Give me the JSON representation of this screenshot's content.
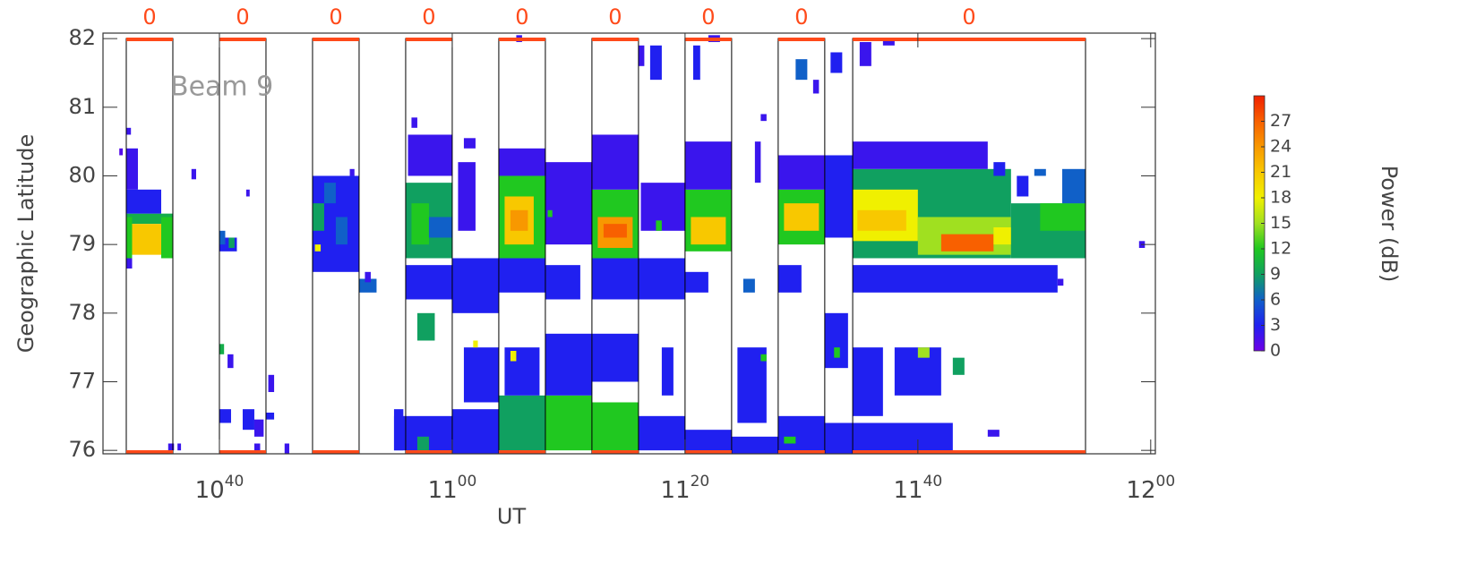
{
  "chart_data": {
    "type": "heatmap",
    "xlabel": "UT",
    "ylabel": "Geographic Latitude",
    "colorbar_label": "Power (dB)",
    "annotation": "Beam 9",
    "xlim": [
      630,
      720.4
    ],
    "ylim": [
      75.95,
      82.08
    ],
    "zlim": [
      0,
      30
    ],
    "xticks": [
      {
        "value": 640,
        "label": "1040"
      },
      {
        "value": 660,
        "label": "1100"
      },
      {
        "value": 680,
        "label": "1120"
      },
      {
        "value": 700,
        "label": "1140"
      },
      {
        "value": 720,
        "label": "1200"
      }
    ],
    "yticks": [
      76,
      77,
      78,
      79,
      80,
      81,
      82
    ],
    "zticks": [
      0,
      3,
      6,
      9,
      12,
      15,
      18,
      21,
      24,
      27
    ],
    "colormap": [
      "#6e00e6",
      "#2020f0",
      "#1060c8",
      "#10a060",
      "#20c820",
      "#a0e020",
      "#f0f000",
      "#f8c800",
      "#f89800",
      "#f86000",
      "#f02000"
    ],
    "scan_color": "#ff4a1a",
    "scans": [
      {
        "start": 632,
        "end": 636,
        "label": "0"
      },
      {
        "start": 640,
        "end": 644,
        "label": "0"
      },
      {
        "start": 648,
        "end": 652,
        "label": "0"
      },
      {
        "start": 656,
        "end": 660,
        "label": "0"
      },
      {
        "start": 664,
        "end": 668,
        "label": "0"
      },
      {
        "start": 672,
        "end": 676,
        "label": "0"
      },
      {
        "start": 680,
        "end": 684,
        "label": "0"
      },
      {
        "start": 688,
        "end": 692,
        "label": "0"
      },
      {
        "start": 694.4,
        "end": 714.4,
        "label": "0"
      }
    ],
    "cells": [
      [
        632,
        636,
        79.3,
        79.45,
        10
      ],
      [
        632,
        635,
        79.45,
        79.8,
        3
      ],
      [
        632,
        633,
        79.8,
        80.4,
        2
      ],
      [
        632,
        632.5,
        78.65,
        78.8,
        2
      ],
      [
        632,
        632.4,
        80.6,
        80.7,
        2
      ],
      [
        631.4,
        631.7,
        80.3,
        80.4,
        1
      ],
      [
        632,
        632.5,
        78.8,
        79.4,
        12
      ],
      [
        635,
        636,
        78.8,
        79.4,
        12
      ],
      [
        632.5,
        635,
        78.85,
        79.3,
        21
      ],
      [
        635.6,
        636.1,
        76,
        76.1,
        2
      ],
      [
        636.4,
        636.7,
        76,
        76.1,
        2
      ],
      [
        637.6,
        638,
        79.95,
        80.1,
        2
      ],
      [
        640,
        641.5,
        78.9,
        79.1,
        3
      ],
      [
        640,
        640.5,
        79,
        79.2,
        6
      ],
      [
        640.8,
        641.3,
        78.95,
        79.1,
        9
      ],
      [
        640,
        640.4,
        77.4,
        77.55,
        10
      ],
      [
        640,
        641,
        76.4,
        76.6,
        3
      ],
      [
        642,
        643,
        76.3,
        76.6,
        3
      ],
      [
        643,
        643.8,
        76.2,
        76.45,
        2
      ],
      [
        644,
        644.7,
        76.45,
        76.55,
        3
      ],
      [
        643,
        643.5,
        75.95,
        76.1,
        2
      ],
      [
        644.2,
        644.7,
        76.85,
        77.1,
        2
      ],
      [
        642.3,
        642.6,
        79.7,
        79.8,
        2
      ],
      [
        640.7,
        641.2,
        77.2,
        77.4,
        2
      ],
      [
        645.6,
        646,
        75.95,
        76.1,
        2
      ],
      [
        648,
        652,
        78.6,
        80,
        3
      ],
      [
        648,
        649,
        79.2,
        79.6,
        9
      ],
      [
        650,
        651,
        79,
        79.4,
        6
      ],
      [
        648.2,
        648.7,
        78.9,
        79,
        18
      ],
      [
        649,
        650,
        79.6,
        79.9,
        6
      ],
      [
        651.2,
        651.6,
        80,
        80.1,
        2
      ],
      [
        652,
        653.5,
        78.3,
        78.5,
        6
      ],
      [
        652.5,
        653,
        78.45,
        78.6,
        2
      ],
      [
        655,
        655.8,
        76,
        76.6,
        3
      ],
      [
        656,
        660,
        78.8,
        79.9,
        9
      ],
      [
        656.5,
        658,
        79,
        79.6,
        12
      ],
      [
        658,
        660,
        79.1,
        79.4,
        6
      ],
      [
        656.2,
        660,
        80,
        80.6,
        2
      ],
      [
        656.5,
        657,
        80.7,
        80.85,
        2
      ],
      [
        656,
        660,
        78.2,
        78.7,
        3
      ],
      [
        657,
        658.5,
        77.6,
        78,
        9
      ],
      [
        656,
        660,
        75.95,
        76.5,
        3
      ],
      [
        657,
        658,
        76,
        76.2,
        9
      ],
      [
        655,
        656,
        76,
        76.5,
        3
      ],
      [
        660,
        664,
        78,
        78.8,
        3
      ],
      [
        660,
        664,
        75.95,
        76.6,
        3
      ],
      [
        661,
        664,
        76.7,
        77.5,
        3
      ],
      [
        660.5,
        662,
        79.2,
        80.2,
        2
      ],
      [
        661,
        662,
        80.4,
        80.55,
        2
      ],
      [
        661.8,
        662.2,
        77.5,
        77.6,
        18
      ],
      [
        664,
        668,
        78.8,
        80,
        12
      ],
      [
        664.5,
        667,
        79,
        79.7,
        21
      ],
      [
        665,
        666.5,
        79.2,
        79.5,
        24
      ],
      [
        664,
        668,
        80,
        80.4,
        2
      ],
      [
        665.5,
        666,
        81.95,
        82.05,
        2
      ],
      [
        664,
        668,
        78.3,
        78.8,
        3
      ],
      [
        664,
        668,
        75.95,
        76.8,
        9
      ],
      [
        664.5,
        667.5,
        76.8,
        77.5,
        3
      ],
      [
        665,
        665.5,
        77.3,
        77.45,
        18
      ],
      [
        668,
        672,
        79,
        80.2,
        2
      ],
      [
        668.2,
        668.6,
        79.4,
        79.5,
        12
      ],
      [
        668,
        672,
        76,
        76.8,
        12
      ],
      [
        668,
        672,
        76.8,
        77.7,
        3
      ],
      [
        668,
        671,
        78.2,
        78.7,
        3
      ],
      [
        672,
        676,
        78.8,
        79.8,
        12
      ],
      [
        672.5,
        675.5,
        78.95,
        79.4,
        24
      ],
      [
        673,
        675,
        79.1,
        79.3,
        27
      ],
      [
        672,
        676,
        79.8,
        80.6,
        2
      ],
      [
        672,
        676,
        78.2,
        78.8,
        3
      ],
      [
        672,
        676,
        75.95,
        76.7,
        12
      ],
      [
        672,
        676,
        77,
        77.7,
        3
      ],
      [
        676,
        676.5,
        81.6,
        81.9,
        2
      ],
      [
        676,
        680,
        78.2,
        78.8,
        3
      ],
      [
        676.2,
        680,
        79.2,
        79.9,
        2
      ],
      [
        677,
        678,
        81.4,
        81.9,
        3
      ],
      [
        676,
        680,
        76,
        76.5,
        3
      ],
      [
        678,
        679,
        76.8,
        77.5,
        3
      ],
      [
        677.5,
        678,
        79.2,
        79.35,
        12
      ],
      [
        680,
        684,
        78.9,
        79.8,
        12
      ],
      [
        680.5,
        683.5,
        79,
        79.4,
        21
      ],
      [
        680,
        684,
        79.8,
        80.5,
        2
      ],
      [
        680,
        684,
        75.95,
        76.3,
        3
      ],
      [
        680,
        682,
        78.3,
        78.6,
        3
      ],
      [
        680.7,
        681.3,
        81.4,
        81.9,
        3
      ],
      [
        682,
        683,
        81.95,
        82.05,
        2
      ],
      [
        685,
        686,
        78.3,
        78.5,
        6
      ],
      [
        686,
        686.5,
        79.9,
        80.5,
        2
      ],
      [
        686.5,
        687,
        80.8,
        80.9,
        2
      ],
      [
        684.5,
        687,
        76.4,
        77.5,
        3
      ],
      [
        686.5,
        687,
        77.3,
        77.4,
        12
      ],
      [
        684,
        688,
        75.95,
        76.2,
        3
      ],
      [
        688,
        692,
        79,
        79.8,
        12
      ],
      [
        688.5,
        691.5,
        79.2,
        79.6,
        21
      ],
      [
        688,
        692,
        79.8,
        80.3,
        2
      ],
      [
        689.5,
        690.5,
        81.4,
        81.7,
        6
      ],
      [
        691,
        691.5,
        81.2,
        81.4,
        2
      ],
      [
        688,
        692,
        75.95,
        76.5,
        3
      ],
      [
        688.5,
        689.5,
        76.1,
        76.2,
        12
      ],
      [
        688,
        690,
        78.3,
        78.7,
        3
      ],
      [
        692,
        694.4,
        79.1,
        80.3,
        3
      ],
      [
        692.5,
        693.5,
        81.5,
        81.8,
        3
      ],
      [
        692,
        694.4,
        75.95,
        76.4,
        3
      ],
      [
        692,
        694,
        77.2,
        78,
        3
      ],
      [
        692.8,
        693.3,
        77.35,
        77.5,
        12
      ],
      [
        694.4,
        708,
        78.8,
        80.1,
        9
      ],
      [
        694.4,
        700,
        79.05,
        79.8,
        18
      ],
      [
        694.8,
        699,
        79.2,
        79.5,
        21
      ],
      [
        700,
        708,
        78.85,
        79.4,
        15
      ],
      [
        702,
        706.5,
        78.9,
        79.15,
        27
      ],
      [
        706.5,
        710.5,
        79,
        79.25,
        18
      ],
      [
        708,
        714.4,
        78.8,
        79.6,
        9
      ],
      [
        710.5,
        714.4,
        79.2,
        79.6,
        12
      ],
      [
        712.4,
        714.4,
        79.6,
        80.1,
        6
      ],
      [
        708.5,
        709.5,
        79.7,
        80,
        3
      ],
      [
        710,
        711,
        80,
        80.1,
        6
      ],
      [
        706.5,
        707.5,
        80,
        80.2,
        3
      ],
      [
        694.4,
        706,
        80.1,
        80.5,
        2
      ],
      [
        695,
        696,
        81.6,
        81.95,
        2
      ],
      [
        697,
        698,
        81.9,
        82,
        2
      ],
      [
        694.4,
        712,
        78.3,
        78.7,
        3
      ],
      [
        694.4,
        703,
        75.95,
        76.4,
        3
      ],
      [
        694.4,
        697,
        76.5,
        77.5,
        3
      ],
      [
        698,
        702,
        76.8,
        77.5,
        3
      ],
      [
        700,
        701,
        77.35,
        77.5,
        15
      ],
      [
        703,
        704,
        77.1,
        77.35,
        9
      ],
      [
        706,
        707,
        76.2,
        76.3,
        2
      ],
      [
        712,
        712.5,
        78.4,
        78.5,
        2
      ],
      [
        719,
        719.5,
        78.95,
        79.05,
        2
      ]
    ]
  }
}
